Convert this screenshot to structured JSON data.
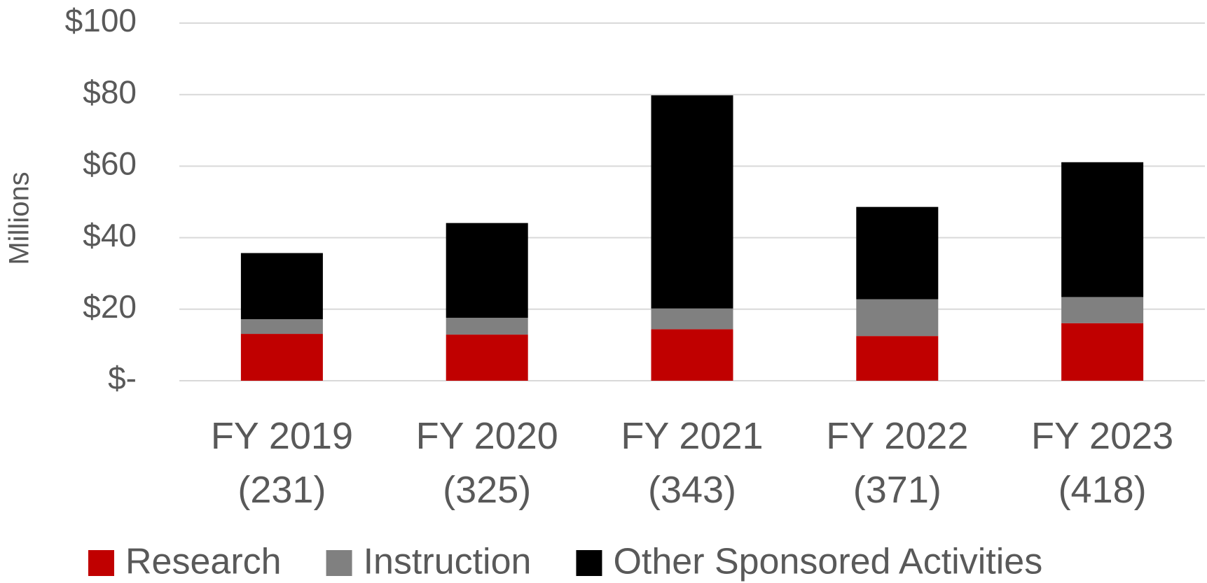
{
  "chart_data": {
    "type": "stacked-bar",
    "y_label": "Millions",
    "categories": [
      "FY 2019 (231)",
      "FY 2020 (325)",
      "FY 2021 (343)",
      "FY 2022 (371)",
      "FY 2023 (418)"
    ],
    "series": [
      {
        "name": "Research",
        "color": "#c00000",
        "values": [
          13.1,
          12.9,
          14.4,
          12.5,
          16.1
        ]
      },
      {
        "name": "Instruction",
        "color": "#808080",
        "values": [
          4.1,
          4.7,
          5.8,
          10.3,
          7.3
        ]
      },
      {
        "name": "Other Sponsored Activities",
        "color": "#000000",
        "values": [
          18.5,
          26.5,
          59.6,
          25.8,
          37.7
        ]
      }
    ],
    "ylim": [
      0,
      100
    ],
    "yticks": [
      {
        "value": 0,
        "label": "$-"
      },
      {
        "value": 20,
        "label": "$20"
      },
      {
        "value": 40,
        "label": "$40"
      },
      {
        "value": 60,
        "label": "$60"
      },
      {
        "value": 80,
        "label": "$80"
      },
      {
        "value": 100,
        "label": "$100"
      }
    ],
    "grid": true,
    "legend": "bottom"
  }
}
